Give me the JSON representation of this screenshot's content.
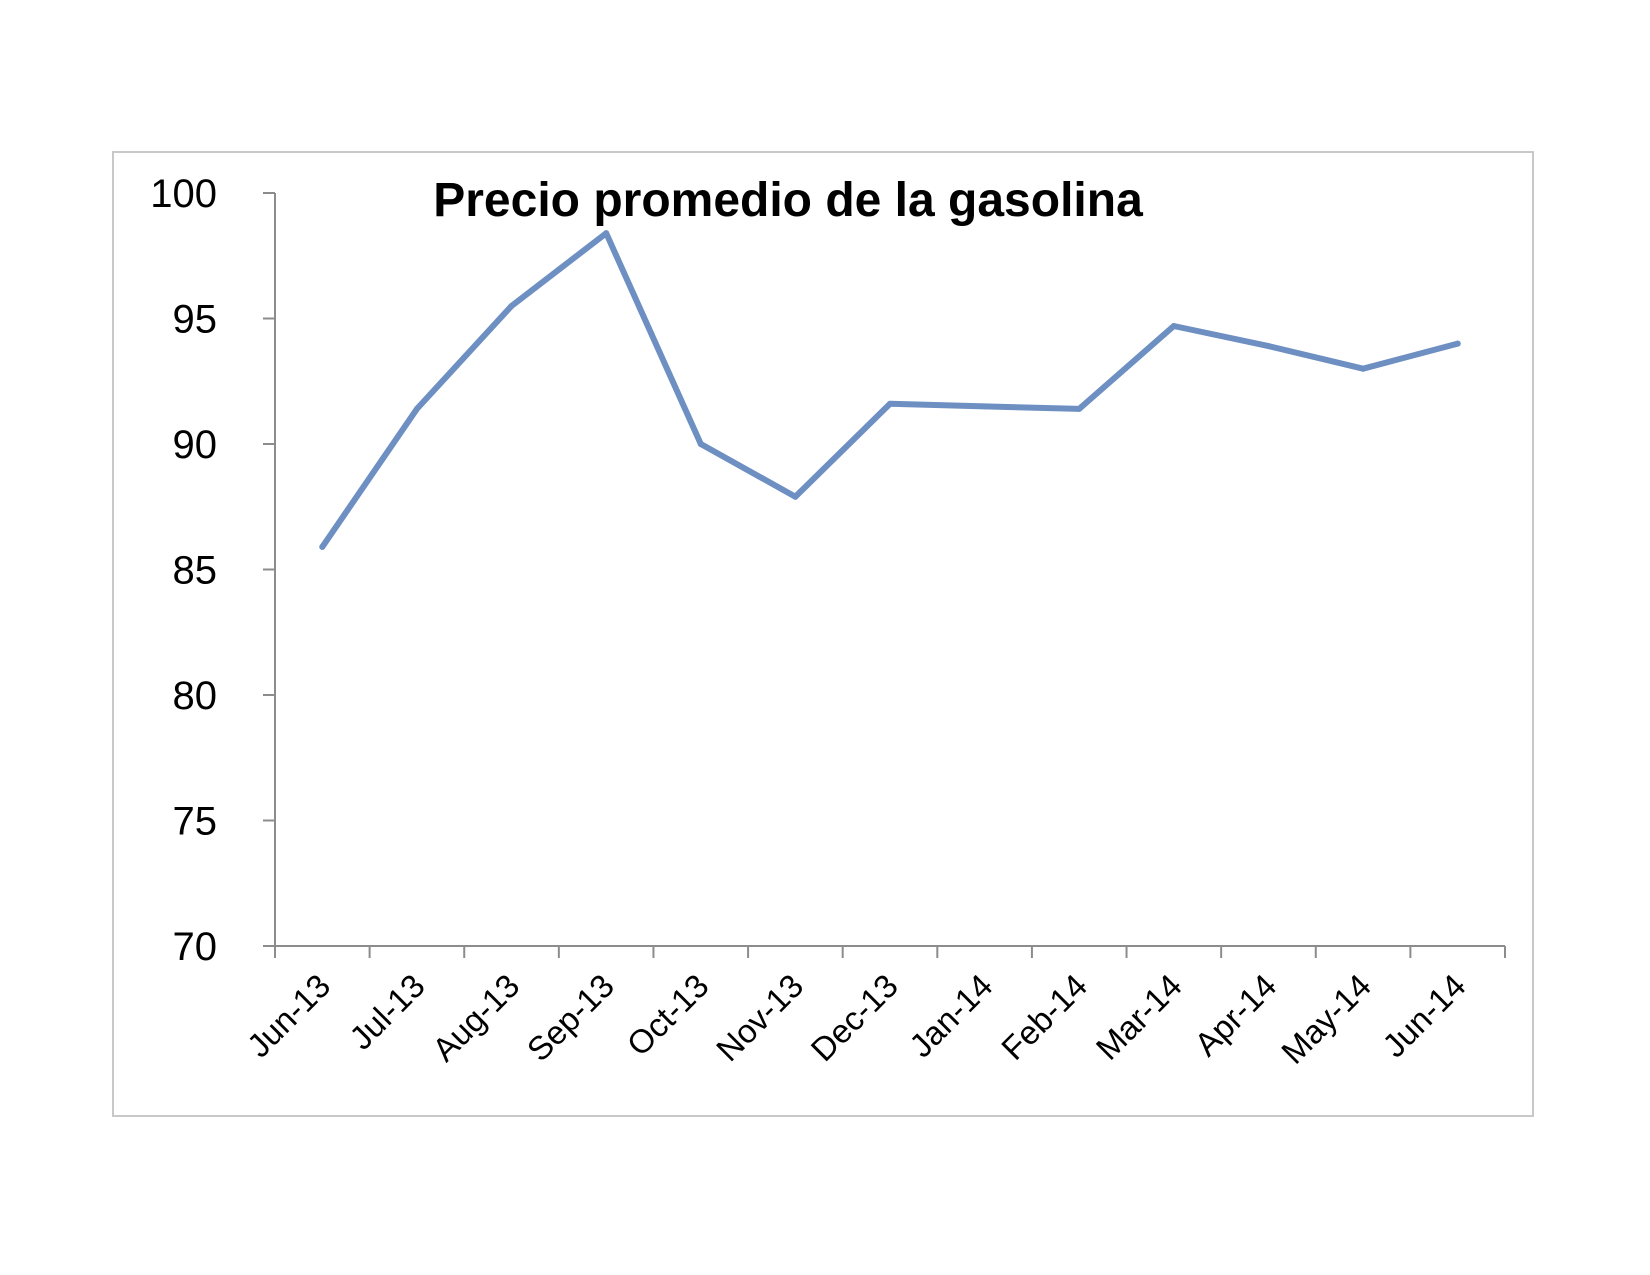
{
  "chart_data": {
    "type": "line",
    "title": "Precio promedio de la gasolina",
    "xlabel": "",
    "ylabel": "",
    "categories": [
      "Jun-13",
      "Jul-13",
      "Aug-13",
      "Sep-13",
      "Oct-13",
      "Nov-13",
      "Dec-13",
      "Jan-14",
      "Feb-14",
      "Mar-14",
      "Apr-14",
      "May-14",
      "Jun-14"
    ],
    "series": [
      {
        "values": [
          85.9,
          91.4,
          95.5,
          98.4,
          90.0,
          87.9,
          91.6,
          91.5,
          91.4,
          94.7,
          93.9,
          93.0,
          94.0
        ],
        "color": "#6d8fc2"
      }
    ],
    "ylim": [
      70,
      100
    ],
    "yticks": [
      "70",
      "75",
      "80",
      "85",
      "90",
      "95",
      "100"
    ],
    "grid": false,
    "legend": "none"
  }
}
